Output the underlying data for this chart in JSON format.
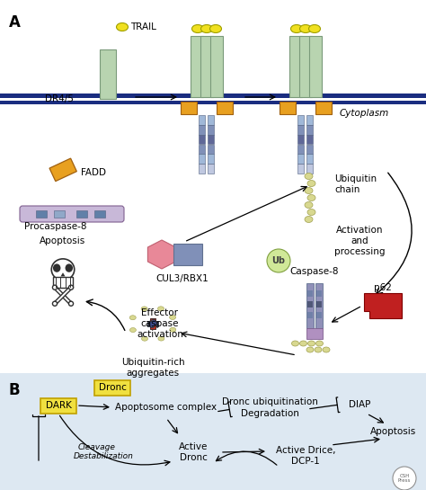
{
  "bg_color": "#ffffff",
  "panel_b_bg": "#dde8f0",
  "membrane_color1": "#1a2d80",
  "membrane_color2": "#1a2d80",
  "receptor_color": "#b8d4b0",
  "fadd_color": "#e8a020",
  "procasp_color": "#c0b0d0",
  "ubiquitin_color": "#d8d890",
  "cul3_hex_color": "#e88090",
  "cul3_rect_color": "#8090b8",
  "p62_color": "#c02020",
  "caspase8_color": "#9090b8",
  "title_a": "A",
  "title_b": "B",
  "label_trail": "TRAIL",
  "label_dr45": "DR4/5",
  "label_cytoplasm": "Cytoplasm",
  "label_fadd": "FADD",
  "label_procasp": "Procaspase-8",
  "label_ubchain": "Ubiquitin\nchain",
  "label_act": "Activation\nand\nprocessing",
  "label_cul3": "CUL3/RBX1",
  "label_ub": "Ub",
  "label_casp8": "Caspase-8",
  "label_agg": "Ubiquitin-rich\naggregates",
  "label_eff": "Effector\ncaspase\nactivation",
  "label_apop": "Apoptosis",
  "label_p62": "p62",
  "label_dronc": "Dronc",
  "label_dark": "DARK",
  "label_ubiquitination": "Dronc ubiquitination",
  "label_degradation": "Degradation",
  "label_diap": "DIAP",
  "label_cleavage": "Cleavage",
  "label_destab": "Destabilization",
  "label_active_dronc": "Active\nDronc",
  "label_active_drice": "Active Drice,\nDCP-1",
  "label_apoptosis_b": "Apoptosis"
}
